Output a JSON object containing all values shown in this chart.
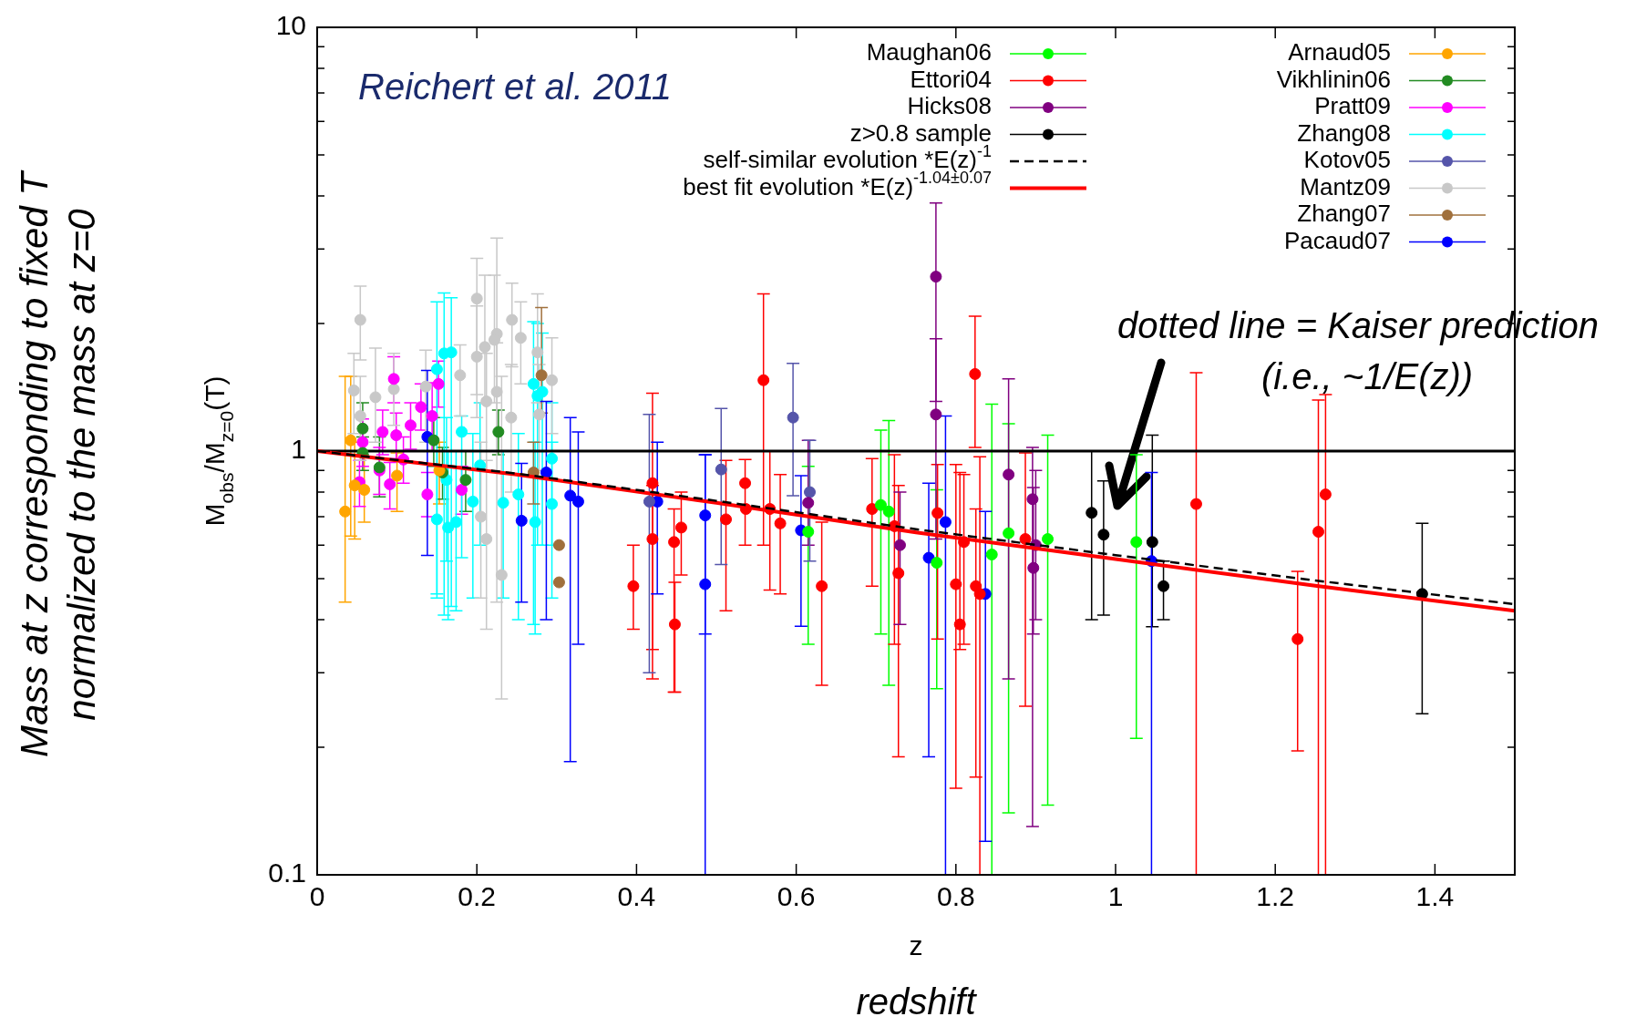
{
  "chart_data": {
    "type": "scatter",
    "xlabel": "z",
    "ylabel": "M$_{obs}$/M$_{z=0}$(T)",
    "xlim": [
      0,
      1.5
    ],
    "xticks": [
      0,
      0.2,
      0.4,
      0.6,
      0.8,
      1,
      1.2,
      1.4
    ],
    "ylim": [
      0.1,
      10
    ],
    "yticks": [
      0.1,
      {
        "value": 0.2,
        "label": null
      },
      {
        "value": 0.3,
        "label": null
      },
      {
        "value": 0.4,
        "label": null
      },
      {
        "value": 0.5,
        "label": null
      },
      {
        "value": 0.6,
        "label": null
      },
      {
        "value": 0.7,
        "label": null
      },
      {
        "value": 0.8,
        "label": null
      },
      {
        "value": 0.9,
        "label": null
      },
      1,
      {
        "value": 2,
        "label": null
      },
      {
        "value": 3,
        "label": null
      },
      {
        "value": 4,
        "label": null
      },
      {
        "value": 5,
        "label": null
      },
      {
        "value": 6,
        "label": null
      },
      {
        "value": 7,
        "label": null
      },
      {
        "value": 8,
        "label": null
      },
      {
        "value": 9,
        "label": null
      },
      10
    ],
    "log": "y",
    "grid": false,
    "legend": "top",
    "marker": "circle",
    "ref_lines": [
      {
        "axis": "y",
        "value": 1,
        "color": "#000000"
      }
    ],
    "annotations": [
      "Reichert et al. 2011",
      "dotted line = Kaiser prediction (i.e., ~1/E(z))",
      "redshift",
      "Mass at z corresponding to fixed T normalized to the mass at z=0"
    ],
    "series": [
      {
        "name": "Maughan06",
        "type": "scatter",
        "color": "#00ff00",
        "x": [
          0.615,
          0.706,
          0.716,
          0.776,
          0.845,
          0.866,
          0.915,
          1.026
        ],
        "values": [
          0.645,
          0.746,
          0.72,
          0.545,
          0.57,
          0.64,
          0.62,
          0.61
        ],
        "errors": [
          [
            0.35,
            0.92
          ],
          [
            0.37,
            1.12
          ],
          [
            0.28,
            1.18
          ],
          [
            0.275,
            0.81
          ],
          [
            0.1,
            1.29
          ],
          [
            0.14,
            1.16
          ],
          [
            0.146,
            1.09
          ],
          [
            0.21,
            0.98
          ]
        ]
      },
      {
        "name": "Ettori04",
        "type": "scatter",
        "color": "#ff0000",
        "x": [
          0.396,
          0.42,
          0.42,
          0.447,
          0.448,
          0.456,
          0.512,
          0.536,
          0.537,
          0.559,
          0.567,
          0.58,
          0.632,
          0.695,
          0.723,
          0.728,
          0.777,
          0.8,
          0.805,
          0.81,
          0.824,
          0.825,
          0.83,
          0.887,
          1.101,
          1.228,
          1.254,
          1.263
        ],
        "values": [
          0.48,
          0.84,
          0.62,
          0.61,
          0.39,
          0.66,
          0.69,
          0.84,
          0.73,
          1.47,
          0.73,
          0.675,
          0.48,
          0.73,
          0.665,
          0.515,
          0.714,
          0.485,
          0.39,
          0.61,
          1.52,
          0.48,
          0.46,
          0.62,
          0.75,
          0.36,
          0.645,
          0.79
        ],
        "errors": [
          [
            0.38,
            0.6
          ],
          [
            0.29,
            1.37
          ],
          [
            0.34,
            0.83
          ],
          [
            0.27,
            0.73
          ],
          [
            0.27,
            0.49
          ],
          [
            0.51,
            0.8
          ],
          [
            0.42,
            0.95
          ],
          [
            0.6,
            0.955
          ],
          null,
          [
            0.6,
            2.35
          ],
          [
            0.47,
            1
          ],
          [
            0.46,
            0.88
          ],
          [
            0.28,
            0.68
          ],
          [
            0.48,
            0.96
          ],
          [
            0.35,
            0.98
          ],
          [
            0.19,
            0.83
          ],
          [
            0.36,
            0.93
          ],
          [
            0.16,
            0.93
          ],
          [
            0.34,
            0.89
          ],
          [
            0.35,
            0.88
          ],
          [
            1.02,
            2.08
          ],
          [
            0.17,
            0.73
          ],
          [
            0.1,
            0.97
          ],
          [
            0.25,
            0.99
          ],
          [
            0.1,
            1.53
          ],
          [
            0.196,
            0.52
          ],
          [
            0.1,
            1.32
          ],
          [
            0.1,
            1.36
          ]
        ]
      },
      {
        "name": "Hicks08",
        "type": "scatter",
        "color": "#800080",
        "x": [
          0.615,
          0.73,
          0.775,
          0.775,
          0.866,
          0.896,
          0.897,
          0.9
        ],
        "values": [
          0.755,
          0.6,
          1.22,
          2.58,
          0.88,
          0.77,
          0.53,
          0.6
        ],
        "errors": [
          [
            0.6,
            1.06
          ],
          [
            0.39,
            0.8
          ],
          [
            0.62,
            1.84
          ],
          [
            1.31,
            3.85
          ],
          [
            0.29,
            1.48
          ],
          [
            0.13,
            1.02
          ],
          [
            0.37,
            0.82
          ],
          [
            0.4,
            0.9
          ]
        ]
      },
      {
        "name": "z>0.8 sample",
        "type": "scatter",
        "color": "#000000",
        "x": [
          0.97,
          0.985,
          1.046,
          1.06,
          1.384
        ],
        "values": [
          0.715,
          0.635,
          0.61,
          0.48,
          0.46
        ],
        "errors": [
          [
            0.4,
            1
          ],
          [
            0.41,
            0.85
          ],
          [
            0.385,
            1.09
          ],
          [
            0.4,
            0.55
          ],
          [
            0.24,
            0.675
          ]
        ]
      },
      {
        "name": "self-similar evolution *E(z)$^{-1}$",
        "type": "line",
        "color": "#000000",
        "line_style": "dashed",
        "marker": "none",
        "x": [
          0,
          0.25,
          0.5,
          0.75,
          1,
          1.25,
          1.5
        ],
        "values": [
          1,
          0.885,
          0.763,
          0.654,
          0.568,
          0.495,
          0.435
        ]
      },
      {
        "name": "best fit evolution *E(z)$^{-1.04±0.07}$",
        "type": "line",
        "color": "#ff0000",
        "line_style": "solid",
        "marker": "none",
        "x": [
          0,
          0.25,
          0.5,
          0.75,
          1,
          1.25,
          1.5
        ],
        "values": [
          1,
          0.88,
          0.755,
          0.643,
          0.556,
          0.481,
          0.42
        ]
      },
      {
        "name": "Arnaud05",
        "type": "scatter",
        "color": "#ffa500",
        "x": [
          0.035,
          0.042,
          0.047,
          0.1,
          0.059,
          0.153
        ],
        "values": [
          0.72,
          1.06,
          0.83,
          0.875,
          0.81,
          0.9
        ],
        "errors": [
          [
            0.44,
            1.5
          ],
          [
            0.63,
            1.5
          ],
          [
            0.62,
            1.05
          ],
          [
            0.72,
            0.99
          ],
          [
            0.68,
            1
          ],
          [
            0.75,
            1.05
          ]
        ]
      },
      {
        "name": "Vikhlinin06",
        "type": "scatter",
        "color": "#228b22",
        "x": [
          0.057,
          0.227,
          0.186,
          0.078,
          0.057,
          0.157,
          0.146
        ],
        "values": [
          1.13,
          1.11,
          0.855,
          0.915,
          0.99,
          0.89,
          1.06
        ],
        "errors": [
          [
            0.98,
            1.3
          ],
          [
            0.98,
            1.25
          ],
          [
            0.72,
            1
          ],
          [
            0.78,
            1.08
          ],
          [
            0.9,
            1.08
          ],
          [
            0.77,
            1.02
          ],
          [
            0.92,
            1.2
          ]
        ]
      },
      {
        "name": "Pratt09",
        "type": "scatter",
        "color": "#ff00ff",
        "x": [
          0.096,
          0.13,
          0.152,
          0.117,
          0.099,
          0.082,
          0.057,
          0.108,
          0.078,
          0.053,
          0.091,
          0.138,
          0.144,
          0.181
        ],
        "values": [
          1.48,
          1.27,
          1.44,
          1.15,
          1.09,
          1.11,
          1.05,
          0.955,
          0.9,
          0.845,
          0.835,
          0.79,
          1.21,
          0.81
        ],
        "errors": [
          [
            1.3,
            1.67
          ],
          [
            1.12,
            1.44
          ],
          [
            1.27,
            1.63
          ],
          [
            1.01,
            1.3
          ],
          [
            0.96,
            1.23
          ],
          [
            0.98,
            1.25
          ],
          [
            0.92,
            1.19
          ],
          [
            0.84,
            1.08
          ],
          [
            0.79,
            1.02
          ],
          [
            0.74,
            0.95
          ],
          [
            0.73,
            0.94
          ],
          [
            0.7,
            0.89
          ],
          [
            1.0,
            1.45
          ],
          [
            0.71,
            0.92
          ]
        ]
      },
      {
        "name": "Zhang08",
        "type": "scatter",
        "color": "#00ffff",
        "x": [
          0.159,
          0.168,
          0.15,
          0.181,
          0.15,
          0.164,
          0.174,
          0.271,
          0.276,
          0.282,
          0.273,
          0.294,
          0.294,
          0.252,
          0.195,
          0.233,
          0.204,
          0.162
        ],
        "values": [
          1.7,
          1.71,
          1.56,
          1.11,
          0.69,
          0.66,
          0.68,
          1.44,
          1.35,
          1.38,
          0.68,
          0.75,
          0.96,
          0.79,
          0.76,
          0.755,
          0.925,
          0.855
        ],
        "errors": [
          [
            0.41,
            2.36
          ],
          [
            0.43,
            2.3
          ],
          [
            0.46,
            2.25
          ],
          [
            0.56,
            1.21
          ],
          [
            0.45,
            1
          ],
          [
            0.4,
            1
          ],
          [
            0.42,
            1
          ],
          [
            0.39,
            2.02
          ],
          [
            0.6,
            2
          ],
          [
            0.6,
            1.9
          ],
          [
            0.37,
            1.05
          ],
          [
            0.45,
            1.05
          ],
          [
            0.6,
            1.3
          ],
          [
            0.4,
            1.1
          ],
          [
            0.45,
            1.1
          ],
          [
            0.45,
            1
          ],
          [
            0.6,
            1.3
          ],
          [
            0.55,
            1.2
          ]
        ]
      },
      {
        "name": "Kotov05",
        "type": "scatter",
        "color": "#5555aa",
        "x": [
          0.416,
          0.506,
          0.596,
          0.617
        ],
        "values": [
          0.76,
          0.905,
          1.2,
          0.8
        ],
        "errors": [
          [
            0.3,
            1.22
          ],
          [
            0.54,
            1.26
          ],
          [
            0.785,
            1.61
          ],
          [
            0.55,
            1.06
          ]
        ]
      },
      {
        "name": "Mantz09",
        "type": "scatter",
        "color": "#c8c8c8",
        "x": [
          0.054,
          0.046,
          0.073,
          0.054,
          0.096,
          0.136,
          0.179,
          0.2,
          0.2,
          0.21,
          0.225,
          0.222,
          0.244,
          0.255,
          0.276,
          0.294,
          0.225,
          0.212,
          0.243,
          0.278,
          0.205,
          0.212,
          0.231
        ],
        "values": [
          2.04,
          1.39,
          1.34,
          1.21,
          1.4,
          1.42,
          1.51,
          2.29,
          1.67,
          1.76,
          1.89,
          1.83,
          2.04,
          1.85,
          1.71,
          1.47,
          1.38,
          1.31,
          1.2,
          1.22,
          0.7,
          0.62,
          0.51
        ],
        "errors": [
          [
            1.64,
            2.45
          ],
          [
            1.1,
            1.7
          ],
          [
            1.05,
            1.75
          ],
          [
            0.95,
            1.5
          ],
          [
            1.15,
            1.7
          ],
          [
            1.05,
            1.73
          ],
          [
            1.21,
            1.78
          ],
          [
            1.36,
            2.85
          ],
          [
            1.2,
            2.2
          ],
          [
            1.3,
            2.6
          ],
          [
            0.44,
            3.18
          ],
          [
            1.3,
            2.6
          ],
          [
            1.58,
            2.49
          ],
          [
            1.44,
            2.25
          ],
          [
            1.3,
            2.35
          ],
          [
            1.1,
            1.85
          ],
          [
            1,
            1.8
          ],
          [
            0.9,
            1.7
          ],
          [
            0.8,
            1.6
          ],
          [
            0.9,
            1.6
          ],
          [
            0.45,
            1.05
          ],
          [
            0.38,
            0.95
          ],
          [
            0.26,
            1.5
          ]
        ]
      },
      {
        "name": "Zhang07",
        "type": "scatter",
        "color": "#a0703c",
        "x": [
          0.303,
          0.303,
          0.281,
          0.271
        ],
        "values": [
          0.6,
          0.49,
          1.51,
          0.89
        ],
        "errors": [
          null,
          null,
          [
            1.23,
            2.18
          ],
          [
            0.75,
            1.05
          ]
        ]
      },
      {
        "name": "Pacaud07",
        "type": "scatter",
        "color": "#0000ff",
        "x": [
          0.138,
          0.256,
          0.287,
          0.317,
          0.327,
          0.426,
          0.486,
          0.486,
          0.606,
          0.766,
          0.787,
          0.837,
          1.045
        ],
        "values": [
          1.08,
          0.685,
          0.89,
          0.785,
          0.76,
          0.76,
          0.705,
          0.485,
          0.65,
          0.56,
          0.68,
          0.46,
          0.55
        ],
        "errors": [
          [
            0.567,
            1.55
          ],
          [
            0.44,
            0.935
          ],
          [
            0.4,
            1.31
          ],
          [
            0.185,
            1.2
          ],
          [
            0.35,
            1.11
          ],
          [
            0.46,
            1.05
          ],
          [
            0.37,
            0.98
          ],
          [
            0.1,
            0.98
          ],
          [
            0.386,
            0.875
          ],
          [
            0.19,
            0.84
          ],
          [
            0.1,
            1.21
          ],
          [
            0.12,
            0.72
          ],
          [
            0.1,
            0.89
          ]
        ]
      }
    ]
  }
}
